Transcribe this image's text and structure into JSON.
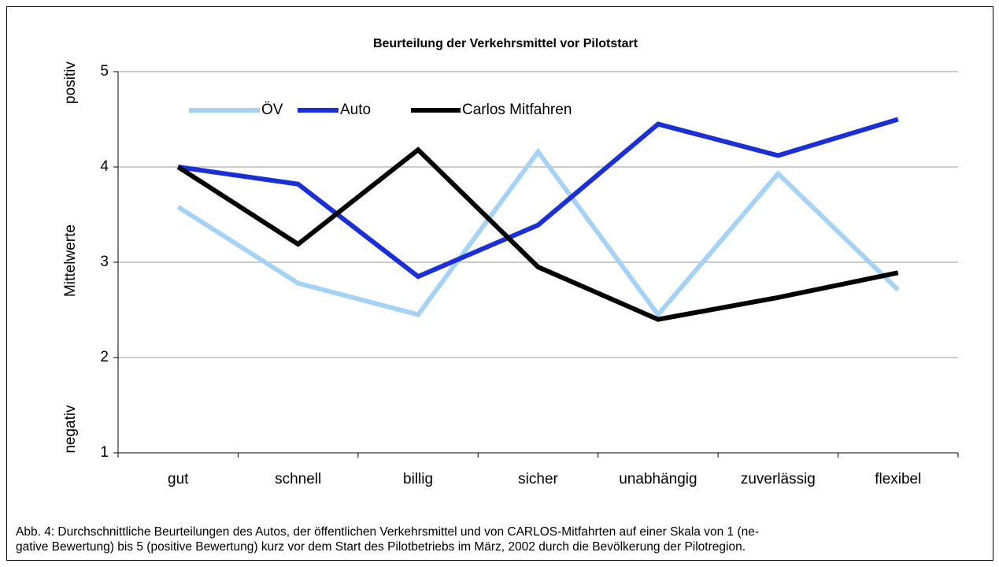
{
  "chart_data": {
    "type": "line",
    "title": "Beurteilung der Verkehrsmittel vor Pilotstart",
    "y_label": "Mittelwerte",
    "y_label_top": "positiv",
    "y_label_bottom": "negativ",
    "categories": [
      "gut",
      "schnell",
      "billig",
      "sicher",
      "unabhängig",
      "zuverlässig",
      "flexibel"
    ],
    "series": [
      {
        "name": "ÖV",
        "color": "#a6d2f5",
        "values": [
          3.58,
          2.78,
          2.45,
          4.16,
          2.45,
          3.93,
          2.71
        ]
      },
      {
        "name": "Auto",
        "color": "#1a2fd6",
        "values": [
          4.0,
          3.82,
          2.85,
          3.39,
          4.45,
          4.12,
          4.5
        ]
      },
      {
        "name": "Carlos Mitfahren",
        "color": "#000000",
        "values": [
          4.0,
          3.19,
          4.18,
          2.95,
          2.4,
          2.63,
          2.89
        ]
      }
    ],
    "ylim": [
      1,
      5
    ],
    "yticks": [
      1,
      2,
      3,
      4,
      5
    ],
    "grid": true,
    "legend": "top-left",
    "caption": [
      "Abb. 4: Durchschnittliche Beurteilungen des Autos, der öffentlichen Verkehrsmittel und von CARLOS-Mitfahrten auf einer Skala von 1 (ne-",
      "gative Bewertung) bis 5 (positive Bewertung) kurz vor dem Start des Pilotbetriebs im März, 2002 durch die Bevölkerung der Pilotregion."
    ]
  }
}
